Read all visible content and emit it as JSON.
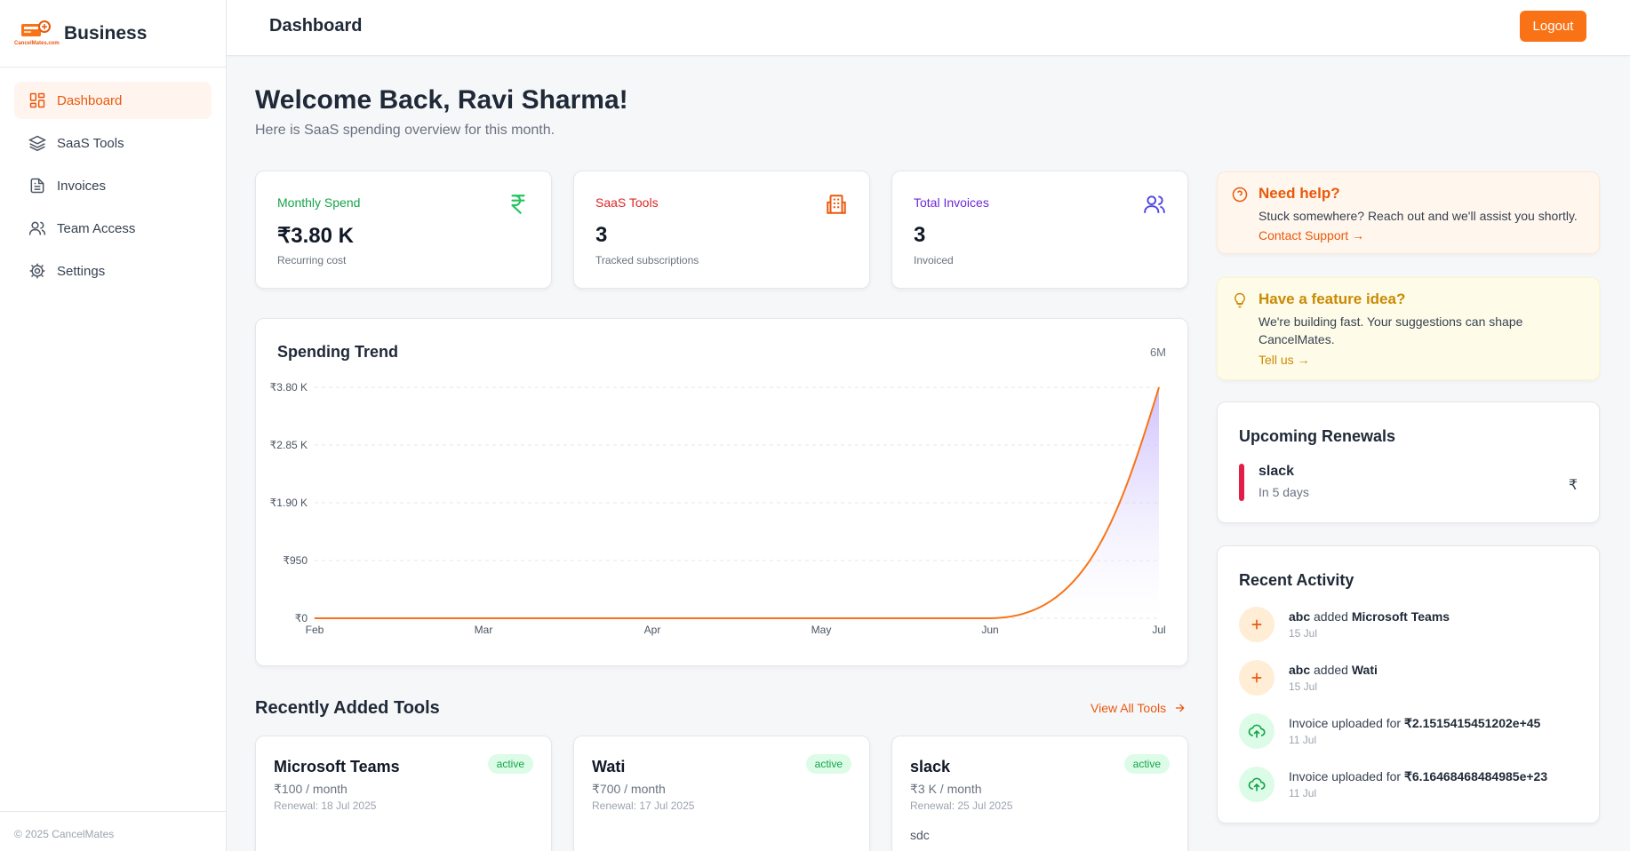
{
  "brand": {
    "logo_text": "CancelMates.com",
    "title": "Business"
  },
  "nav": [
    {
      "label": "Dashboard",
      "icon": "dashboard-icon",
      "active": true
    },
    {
      "label": "SaaS Tools",
      "icon": "layers-icon",
      "active": false
    },
    {
      "label": "Invoices",
      "icon": "file-icon",
      "active": false
    },
    {
      "label": "Team Access",
      "icon": "users-icon",
      "active": false
    },
    {
      "label": "Settings",
      "icon": "gear-icon",
      "active": false
    }
  ],
  "footer": "© 2025 CancelMates",
  "header": {
    "title": "Dashboard",
    "logout": "Logout"
  },
  "welcome": {
    "title": "Welcome Back, Ravi Sharma!",
    "subtitle": "Here is SaaS spending overview for this month."
  },
  "stats": [
    {
      "label": "Monthly Spend",
      "value": "₹3.80 K",
      "sub": "Recurring cost",
      "color": "#16a34a",
      "icon": "rupee-icon"
    },
    {
      "label": "SaaS Tools",
      "value": "3",
      "sub": "Tracked subscriptions",
      "color": "#dc2626",
      "icon": "building-icon"
    },
    {
      "label": "Total Invoices",
      "value": "3",
      "sub": "Invoiced",
      "color": "#6d28d9",
      "icon": "users-icon"
    }
  ],
  "chart": {
    "title": "Spending Trend",
    "range": "6M"
  },
  "chart_data": {
    "type": "area",
    "x": [
      "Feb",
      "Mar",
      "Apr",
      "May",
      "Jun",
      "Jul"
    ],
    "values": [
      0,
      0,
      0,
      0,
      0,
      3800
    ],
    "y_ticks": [
      "₹0",
      "₹950",
      "₹1.90 K",
      "₹2.85 K",
      "₹3.80 K"
    ],
    "ylim": [
      0,
      3800
    ],
    "grid": true,
    "line_color": "#f97316",
    "fill_color": "#c4b5fd"
  },
  "recent_tools": {
    "title": "Recently Added Tools",
    "view_all": "View All Tools",
    "items": [
      {
        "name": "Microsoft Teams",
        "price": "₹100 / month",
        "renewal": "Renewal: 18 Jul 2025",
        "status": "active",
        "note": ""
      },
      {
        "name": "Wati",
        "price": "₹700 / month",
        "renewal": "Renewal: 17 Jul 2025",
        "status": "active",
        "note": ""
      },
      {
        "name": "slack",
        "price": "₹3 K / month",
        "renewal": "Renewal: 25 Jul 2025",
        "status": "active",
        "note": "sdc"
      }
    ]
  },
  "help": {
    "title": "Need help?",
    "text": "Stuck somewhere? Reach out and we'll assist you shortly.",
    "link": "Contact Support →"
  },
  "idea": {
    "title": "Have a feature idea?",
    "text": "We're building fast. Your suggestions can shape CancelMates.",
    "link": "Tell us →"
  },
  "renewals": {
    "title": "Upcoming Renewals",
    "items": [
      {
        "name": "slack",
        "when": "In 5 days",
        "amount": "₹"
      }
    ]
  },
  "activity": {
    "title": "Recent Activity",
    "items": [
      {
        "type": "add",
        "pre": "abc",
        "mid": " added ",
        "strong": "Microsoft Teams",
        "date": "15 Jul"
      },
      {
        "type": "add",
        "pre": "abc",
        "mid": " added ",
        "strong": "Wati",
        "date": "15 Jul"
      },
      {
        "type": "upload",
        "pre": "",
        "mid": "Invoice uploaded for ",
        "strong": "₹2.1515415451202e+45",
        "date": "11 Jul"
      },
      {
        "type": "upload",
        "pre": "",
        "mid": "Invoice uploaded for ",
        "strong": "₹6.16468468484985e+23",
        "date": "11 Jul"
      }
    ]
  }
}
